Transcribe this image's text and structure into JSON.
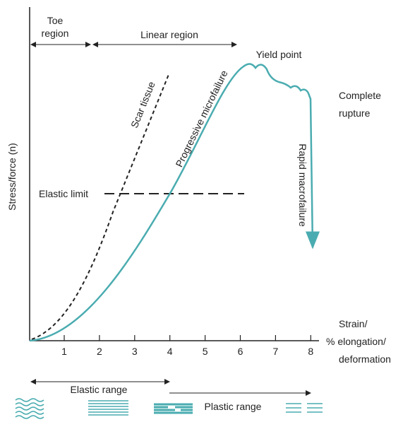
{
  "labels": {
    "toe_region": [
      "Toe",
      "region"
    ],
    "linear_region": "Linear region",
    "yield_point": "Yield point",
    "complete_rupture": [
      "Complete",
      "rupture"
    ],
    "scar_tissue": "Scar tissue",
    "progressive_microfailure": "Progressive microfailure",
    "rapid_macrofailure": "Rapid macrofailure",
    "elastic_limit": "Elastic limit",
    "y_axis": "Stress/force (n)",
    "x_axis": [
      "Strain/",
      "% elongation/",
      "deformation"
    ],
    "elastic_range": "Elastic range",
    "plastic_range": "Plastic range"
  },
  "x_ticks": [
    "1",
    "2",
    "3",
    "4",
    "5",
    "6",
    "7",
    "8"
  ]
}
